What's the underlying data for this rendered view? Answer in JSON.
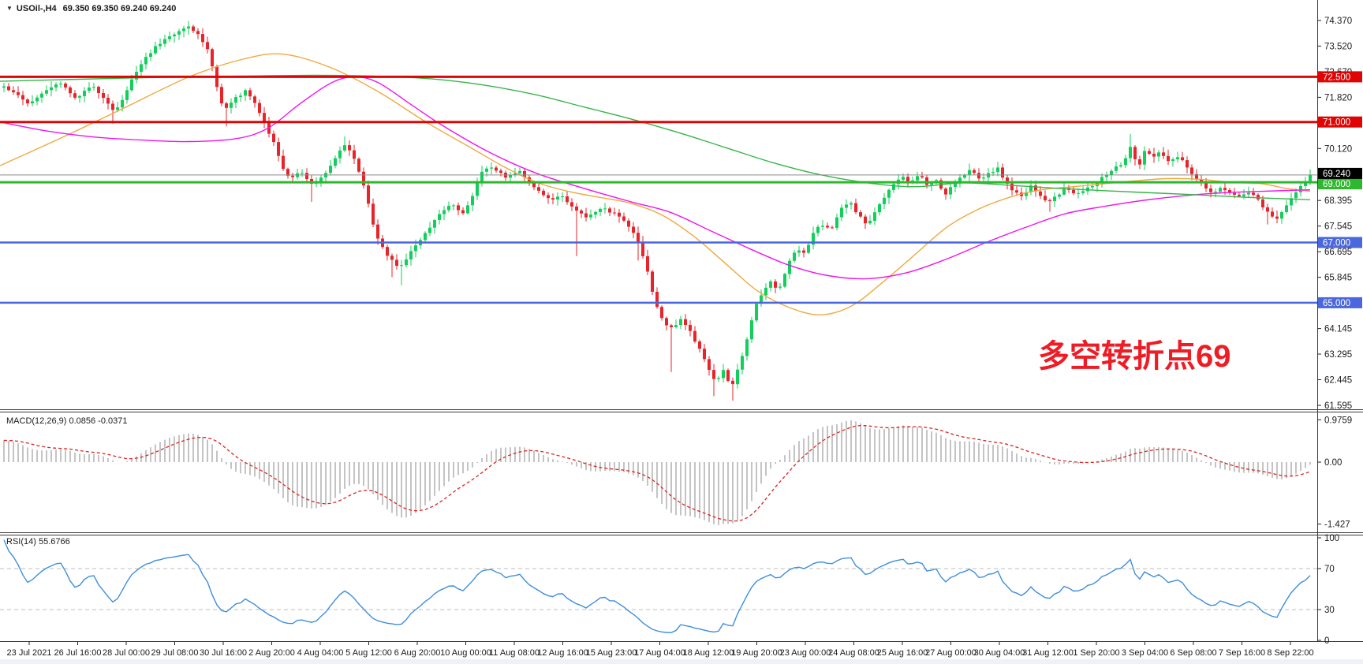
{
  "window": {
    "title_symbol": "USOil-,H4",
    "title_ohlc": "69.350 69.350 69.240 69.240",
    "collapse_icon": "▼"
  },
  "annotation": {
    "text": "多空转折点69",
    "color": "#ee1c25"
  },
  "chart_data": {
    "type": "candlestick",
    "symbol": "USOil",
    "timeframe": "H4",
    "last_ohlc": {
      "open": "69.350",
      "high": "69.350",
      "low": "69.240",
      "close": "69.240"
    },
    "current_price": 69.24,
    "current_price_label": "69.240",
    "price_axis_ticks": [
      "74.370",
      "73.520",
      "72.670",
      "71.820",
      "70.120",
      "68.395",
      "67.545",
      "66.695",
      "65.845",
      "64.145",
      "63.295",
      "62.445",
      "61.595"
    ],
    "levels": [
      {
        "price": 72.5,
        "label": "72.500",
        "color": "#e00505",
        "width": 3
      },
      {
        "price": 71.0,
        "label": "71.000",
        "color": "#e00505",
        "width": 3
      },
      {
        "price": 69.0,
        "label": "69.000",
        "color": "#2eb82e",
        "width": 3
      },
      {
        "price": 67.0,
        "label": "67.000",
        "color": "#4a67dd",
        "width": 2.5
      },
      {
        "price": 65.0,
        "label": "65.000",
        "color": "#4a67dd",
        "width": 2.5
      }
    ],
    "candles": {
      "count": 277,
      "price_path": [
        [
          0,
          72.2
        ],
        [
          20,
          71.9
        ],
        [
          35,
          71.55
        ],
        [
          55,
          72.05
        ],
        [
          75,
          72.3
        ],
        [
          95,
          71.8
        ],
        [
          115,
          72.25
        ],
        [
          143,
          71.3
        ],
        [
          160,
          72.1
        ],
        [
          175,
          72.9
        ],
        [
          195,
          73.5
        ],
        [
          215,
          73.85
        ],
        [
          235,
          74.2
        ],
        [
          250,
          73.9
        ],
        [
          262,
          73.4
        ],
        [
          272,
          72.3
        ],
        [
          282,
          71.35
        ],
        [
          295,
          71.75
        ],
        [
          310,
          72.05
        ],
        [
          322,
          71.6
        ],
        [
          334,
          70.9
        ],
        [
          345,
          70.3
        ],
        [
          356,
          69.45
        ],
        [
          365,
          69.1
        ],
        [
          380,
          69.35
        ],
        [
          395,
          68.9
        ],
        [
          410,
          69.3
        ],
        [
          425,
          69.9
        ],
        [
          437,
          70.3
        ],
        [
          450,
          69.6
        ],
        [
          462,
          68.7
        ],
        [
          472,
          67.45
        ],
        [
          482,
          66.9
        ],
        [
          492,
          66.45
        ],
        [
          505,
          66.15
        ],
        [
          518,
          66.65
        ],
        [
          532,
          67.15
        ],
        [
          545,
          67.6
        ],
        [
          558,
          68.0
        ],
        [
          572,
          68.3
        ],
        [
          585,
          67.95
        ],
        [
          598,
          68.6
        ],
        [
          608,
          69.35
        ],
        [
          622,
          69.5
        ],
        [
          640,
          69.15
        ],
        [
          655,
          69.4
        ],
        [
          668,
          68.95
        ],
        [
          680,
          68.7
        ],
        [
          695,
          68.4
        ],
        [
          710,
          68.55
        ],
        [
          727,
          68.1
        ],
        [
          742,
          67.85
        ],
        [
          758,
          68.15
        ],
        [
          775,
          68.0
        ],
        [
          790,
          67.7
        ],
        [
          805,
          67.2
        ],
        [
          818,
          66.1
        ],
        [
          828,
          65.0
        ],
        [
          838,
          64.4
        ],
        [
          850,
          64.15
        ],
        [
          862,
          64.45
        ],
        [
          872,
          64.1
        ],
        [
          882,
          63.6
        ],
        [
          893,
          63.0
        ],
        [
          905,
          62.35
        ],
        [
          915,
          62.75
        ],
        [
          925,
          62.15
        ],
        [
          935,
          62.9
        ],
        [
          945,
          63.8
        ],
        [
          955,
          64.9
        ],
        [
          965,
          65.35
        ],
        [
          975,
          65.7
        ],
        [
          985,
          65.4
        ],
        [
          997,
          66.3
        ],
        [
          1008,
          66.85
        ],
        [
          1018,
          66.6
        ],
        [
          1028,
          67.3
        ],
        [
          1040,
          67.6
        ],
        [
          1052,
          67.4
        ],
        [
          1063,
          68.15
        ],
        [
          1075,
          68.35
        ],
        [
          1085,
          67.95
        ],
        [
          1097,
          67.6
        ],
        [
          1108,
          68.05
        ],
        [
          1118,
          68.45
        ],
        [
          1130,
          68.95
        ],
        [
          1142,
          69.2
        ],
        [
          1152,
          69.0
        ],
        [
          1163,
          69.3
        ],
        [
          1174,
          68.9
        ],
        [
          1185,
          69.05
        ],
        [
          1196,
          68.6
        ],
        [
          1207,
          68.95
        ],
        [
          1218,
          69.2
        ],
        [
          1229,
          69.4
        ],
        [
          1240,
          69.1
        ],
        [
          1252,
          69.3
        ],
        [
          1263,
          69.45
        ],
        [
          1272,
          69.0
        ],
        [
          1283,
          68.7
        ],
        [
          1294,
          68.5
        ],
        [
          1305,
          68.85
        ],
        [
          1316,
          68.6
        ],
        [
          1327,
          68.3
        ],
        [
          1338,
          68.55
        ],
        [
          1350,
          68.85
        ],
        [
          1362,
          68.6
        ],
        [
          1374,
          68.75
        ],
        [
          1386,
          68.95
        ],
        [
          1398,
          69.2
        ],
        [
          1410,
          69.45
        ],
        [
          1422,
          69.6
        ],
        [
          1433,
          70.25
        ],
        [
          1440,
          69.4
        ],
        [
          1450,
          70.1
        ],
        [
          1460,
          69.85
        ],
        [
          1470,
          70.0
        ],
        [
          1480,
          69.7
        ],
        [
          1492,
          69.85
        ],
        [
          1503,
          69.5
        ],
        [
          1514,
          69.1
        ],
        [
          1525,
          68.85
        ],
        [
          1536,
          68.6
        ],
        [
          1547,
          68.85
        ],
        [
          1558,
          68.65
        ],
        [
          1570,
          68.5
        ],
        [
          1582,
          68.65
        ],
        [
          1594,
          68.4
        ],
        [
          1606,
          67.95
        ],
        [
          1617,
          67.8
        ],
        [
          1628,
          68.2
        ],
        [
          1638,
          68.6
        ],
        [
          1648,
          68.9
        ],
        [
          1656,
          69.1
        ],
        [
          1661,
          69.24
        ]
      ],
      "long_wicks": [
        [
          143,
          70.95
        ],
        [
          282,
          70.85
        ],
        [
          395,
          68.35
        ],
        [
          492,
          65.85
        ],
        [
          505,
          65.58
        ],
        [
          727,
          66.55
        ],
        [
          805,
          66.4
        ],
        [
          850,
          62.7
        ],
        [
          905,
          61.9
        ],
        [
          925,
          61.75
        ],
        [
          1095,
          67.45
        ],
        [
          1327,
          68.02
        ],
        [
          1606,
          67.6
        ]
      ],
      "high_spikes": [
        [
          235,
          74.35
        ],
        [
          437,
          70.52
        ],
        [
          622,
          69.66
        ],
        [
          1229,
          69.62
        ],
        [
          1433,
          70.6
        ]
      ],
      "bull_color": "#10cf5a",
      "bear_color": "#e9232a"
    },
    "moving_averages": [
      {
        "name": "ma-orange",
        "color": "#efa93f",
        "points": [
          [
            0,
            69.55
          ],
          [
            80,
            70.5
          ],
          [
            160,
            71.5
          ],
          [
            240,
            72.5
          ],
          [
            310,
            73.1
          ],
          [
            360,
            73.25
          ],
          [
            420,
            72.8
          ],
          [
            480,
            72.0
          ],
          [
            540,
            71.0
          ],
          [
            600,
            70.1
          ],
          [
            640,
            69.5
          ],
          [
            680,
            69.0
          ],
          [
            720,
            68.7
          ],
          [
            760,
            68.5
          ],
          [
            800,
            68.3
          ],
          [
            840,
            67.9
          ],
          [
            880,
            67.2
          ],
          [
            920,
            66.3
          ],
          [
            960,
            65.4
          ],
          [
            1000,
            64.85
          ],
          [
            1040,
            64.6
          ],
          [
            1080,
            64.9
          ],
          [
            1120,
            65.7
          ],
          [
            1160,
            66.6
          ],
          [
            1200,
            67.5
          ],
          [
            1240,
            68.1
          ],
          [
            1280,
            68.5
          ],
          [
            1320,
            68.75
          ],
          [
            1360,
            68.85
          ],
          [
            1400,
            68.95
          ],
          [
            1440,
            69.05
          ],
          [
            1480,
            69.12
          ],
          [
            1520,
            69.1
          ],
          [
            1560,
            69.0
          ],
          [
            1600,
            68.95
          ],
          [
            1630,
            68.8
          ],
          [
            1661,
            68.7
          ]
        ]
      },
      {
        "name": "ma-magenta",
        "color": "#f014f0",
        "points": [
          [
            0,
            71.0
          ],
          [
            60,
            70.7
          ],
          [
            120,
            70.5
          ],
          [
            180,
            70.4
          ],
          [
            240,
            70.35
          ],
          [
            300,
            70.45
          ],
          [
            340,
            70.8
          ],
          [
            380,
            71.6
          ],
          [
            420,
            72.3
          ],
          [
            450,
            72.5
          ],
          [
            480,
            72.3
          ],
          [
            520,
            71.6
          ],
          [
            560,
            70.9
          ],
          [
            620,
            70.0
          ],
          [
            680,
            69.3
          ],
          [
            740,
            68.8
          ],
          [
            800,
            68.35
          ],
          [
            850,
            68.0
          ],
          [
            900,
            67.4
          ],
          [
            950,
            66.8
          ],
          [
            1000,
            66.25
          ],
          [
            1050,
            65.9
          ],
          [
            1100,
            65.8
          ],
          [
            1150,
            66.0
          ],
          [
            1200,
            66.45
          ],
          [
            1250,
            67.0
          ],
          [
            1300,
            67.5
          ],
          [
            1350,
            67.95
          ],
          [
            1400,
            68.2
          ],
          [
            1450,
            68.4
          ],
          [
            1500,
            68.55
          ],
          [
            1550,
            68.65
          ],
          [
            1600,
            68.7
          ],
          [
            1661,
            68.75
          ]
        ]
      },
      {
        "name": "ma-green",
        "color": "#38b54a",
        "points": [
          [
            0,
            72.35
          ],
          [
            100,
            72.42
          ],
          [
            200,
            72.48
          ],
          [
            300,
            72.52
          ],
          [
            400,
            72.55
          ],
          [
            500,
            72.5
          ],
          [
            560,
            72.4
          ],
          [
            620,
            72.2
          ],
          [
            680,
            71.9
          ],
          [
            740,
            71.5
          ],
          [
            800,
            71.1
          ],
          [
            860,
            70.65
          ],
          [
            920,
            70.15
          ],
          [
            980,
            69.65
          ],
          [
            1040,
            69.25
          ],
          [
            1100,
            68.98
          ],
          [
            1160,
            68.85
          ],
          [
            1220,
            68.98
          ],
          [
            1280,
            68.9
          ],
          [
            1340,
            68.8
          ],
          [
            1400,
            68.72
          ],
          [
            1460,
            68.65
          ],
          [
            1520,
            68.58
          ],
          [
            1580,
            68.5
          ],
          [
            1661,
            68.42
          ]
        ]
      }
    ],
    "macd": {
      "label": "MACD(12,26,9) 0.0856 -0.0371",
      "params": [
        12,
        26,
        9
      ],
      "main_value": 0.0856,
      "signal_value": -0.0371,
      "axis_labels": [
        "0.9759",
        "0.00",
        "-1.427"
      ],
      "hist_color": "#c4c4c4",
      "signal_color": "#dd2222"
    },
    "rsi": {
      "label": "RSI(14) 55.6766",
      "period": 14,
      "value": 55.6766,
      "axis_labels": [
        "100",
        "70",
        "30",
        "0"
      ],
      "dashed_levels": [
        70,
        30
      ],
      "line_color": "#3e8ede",
      "dash_color": "#bdbdbd"
    },
    "time_labels": [
      "23 Jul 2021",
      "26 Jul 16:00",
      "28 Jul 00:00",
      "29 Jul 08:00",
      "30 Jul 16:00",
      "2 Aug 20:00",
      "4 Aug 04:00",
      "5 Aug 12:00",
      "6 Aug 20:00",
      "10 Aug 00:00",
      "11 Aug 08:00",
      "12 Aug 16:00",
      "15 Aug 23:00",
      "17 Aug 04:00",
      "18 Aug 12:00",
      "19 Aug 20:00",
      "23 Aug 00:00",
      "24 Aug 08:00",
      "25 Aug 16:00",
      "27 Aug 00:00",
      "30 Aug 04:00",
      "31 Aug 12:00",
      "1 Sep 20:00",
      "3 Sep 04:00",
      "6 Sep 08:00",
      "7 Sep 16:00",
      "8 Sep 22:00"
    ],
    "colors": {
      "background": "#ffffff",
      "panel_border": "#3c3c3c",
      "axis_text": "#1a1a1a",
      "current_line": "#8a8a8a",
      "current_badge_bg": "#000000",
      "badge_text": "#ffffff"
    }
  }
}
